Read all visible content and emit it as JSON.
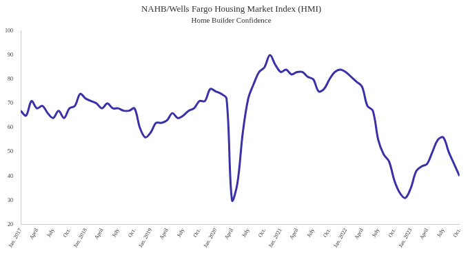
{
  "chart_data": {
    "type": "line",
    "title": "NAHB/Wells Fargo Housing Market Index (HMI)",
    "subtitle": "Home Builder Confidence",
    "categories": [
      "Jan. 2017",
      null,
      null,
      "April",
      null,
      null,
      "July",
      null,
      null,
      "Oct.",
      null,
      null,
      "Jan. 2018",
      null,
      null,
      "April",
      null,
      null,
      "July",
      null,
      null,
      "Oct.",
      null,
      null,
      "Jan. 2019",
      null,
      null,
      "April",
      null,
      null,
      "July",
      null,
      null,
      "Oct.",
      null,
      null,
      "Jan. 2020",
      null,
      null,
      "April",
      null,
      null,
      "July",
      null,
      null,
      "Oct.",
      null,
      null,
      "Jan. 2021",
      null,
      null,
      "April",
      null,
      null,
      "July",
      null,
      null,
      "Oct.",
      null,
      null,
      "Jan. 2022",
      null,
      null,
      "April",
      null,
      null,
      "July",
      null,
      null,
      "Oct.",
      null,
      null,
      "Jan. 2023",
      null,
      null,
      "April",
      null,
      null,
      "July",
      null,
      null,
      "Oct."
    ],
    "values": [
      67,
      65,
      71,
      68,
      69,
      66,
      64,
      67,
      64,
      68,
      69,
      74,
      72,
      71,
      70,
      68,
      70,
      68,
      68,
      67,
      67,
      68,
      60,
      56,
      58,
      62,
      62,
      63,
      66,
      64,
      65,
      67,
      68,
      71,
      71,
      76,
      75,
      74,
      72,
      30,
      37,
      58,
      72,
      78,
      83,
      85,
      90,
      86,
      83,
      84,
      82,
      83,
      83,
      81,
      80,
      75,
      76,
      80,
      83,
      84,
      83,
      81,
      79,
      77,
      69,
      67,
      55,
      49,
      46,
      38,
      33,
      31,
      35,
      42,
      44,
      45,
      50,
      55,
      56,
      50,
      45,
      40
    ],
    "color": "#3a30a8",
    "ylim": [
      20,
      100
    ],
    "yticks": [
      20,
      30,
      40,
      50,
      60,
      70,
      80,
      90,
      100
    ],
    "grid": false
  }
}
